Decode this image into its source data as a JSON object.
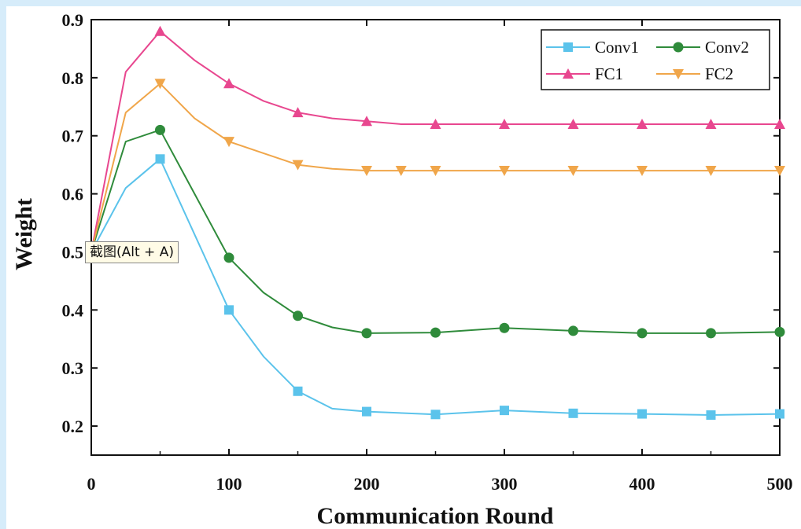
{
  "chart_data": {
    "type": "line",
    "title": "",
    "xlabel": "Communication Round",
    "ylabel": "Weight",
    "xlim": [
      0,
      500
    ],
    "ylim": [
      0.15,
      0.9
    ],
    "x_ticks": [
      "0",
      "100",
      "200",
      "300",
      "400",
      "500"
    ],
    "y_ticks": [
      "0.2",
      "0.3",
      "0.4",
      "0.5",
      "0.6",
      "0.7",
      "0.8",
      "0.9"
    ],
    "legend_position": "top-right",
    "grid": false,
    "series": [
      {
        "name": "Conv1",
        "color": "#5bc3eb",
        "marker": "square",
        "points": [
          [
            0,
            0.5
          ],
          [
            25,
            0.61
          ],
          [
            50,
            0.66
          ],
          [
            75,
            0.53
          ],
          [
            100,
            0.4
          ],
          [
            125,
            0.32
          ],
          [
            150,
            0.26
          ],
          [
            175,
            0.23
          ],
          [
            200,
            0.225
          ],
          [
            250,
            0.22
          ],
          [
            300,
            0.227
          ],
          [
            350,
            0.222
          ],
          [
            400,
            0.221
          ],
          [
            450,
            0.219
          ],
          [
            500,
            0.221
          ]
        ],
        "marker_x": [
          50,
          100,
          150,
          200,
          250,
          300,
          350,
          400,
          450,
          500
        ]
      },
      {
        "name": "Conv2",
        "color": "#2f8b3b",
        "marker": "circle",
        "points": [
          [
            0,
            0.5
          ],
          [
            25,
            0.69
          ],
          [
            50,
            0.71
          ],
          [
            75,
            0.6
          ],
          [
            100,
            0.49
          ],
          [
            125,
            0.43
          ],
          [
            150,
            0.39
          ],
          [
            175,
            0.37
          ],
          [
            200,
            0.36
          ],
          [
            250,
            0.361
          ],
          [
            300,
            0.369
          ],
          [
            350,
            0.364
          ],
          [
            400,
            0.36
          ],
          [
            450,
            0.36
          ],
          [
            500,
            0.362
          ]
        ],
        "marker_x": [
          50,
          100,
          150,
          200,
          250,
          300,
          350,
          400,
          450,
          500
        ]
      },
      {
        "name": "FC1",
        "color": "#e8478f",
        "marker": "triangle-up",
        "points": [
          [
            0,
            0.5
          ],
          [
            25,
            0.81
          ],
          [
            50,
            0.88
          ],
          [
            75,
            0.83
          ],
          [
            100,
            0.79
          ],
          [
            125,
            0.76
          ],
          [
            150,
            0.74
          ],
          [
            175,
            0.73
          ],
          [
            200,
            0.725
          ],
          [
            225,
            0.72
          ],
          [
            250,
            0.72
          ],
          [
            300,
            0.72
          ],
          [
            350,
            0.72
          ],
          [
            400,
            0.72
          ],
          [
            450,
            0.72
          ],
          [
            500,
            0.72
          ]
        ],
        "marker_x": [
          50,
          100,
          150,
          200,
          250,
          300,
          350,
          400,
          450,
          500
        ]
      },
      {
        "name": "FC2",
        "color": "#f0a64a",
        "marker": "triangle-down",
        "points": [
          [
            0,
            0.5
          ],
          [
            25,
            0.74
          ],
          [
            50,
            0.79
          ],
          [
            75,
            0.73
          ],
          [
            100,
            0.69
          ],
          [
            125,
            0.67
          ],
          [
            150,
            0.65
          ],
          [
            175,
            0.643
          ],
          [
            200,
            0.64
          ],
          [
            225,
            0.64
          ],
          [
            250,
            0.64
          ],
          [
            300,
            0.64
          ],
          [
            350,
            0.64
          ],
          [
            400,
            0.64
          ],
          [
            450,
            0.64
          ],
          [
            500,
            0.64
          ]
        ],
        "marker_x": [
          50,
          100,
          150,
          200,
          225,
          250,
          300,
          350,
          400,
          450,
          500
        ]
      }
    ]
  },
  "tooltip": {
    "text": "截图(Alt + A)"
  }
}
